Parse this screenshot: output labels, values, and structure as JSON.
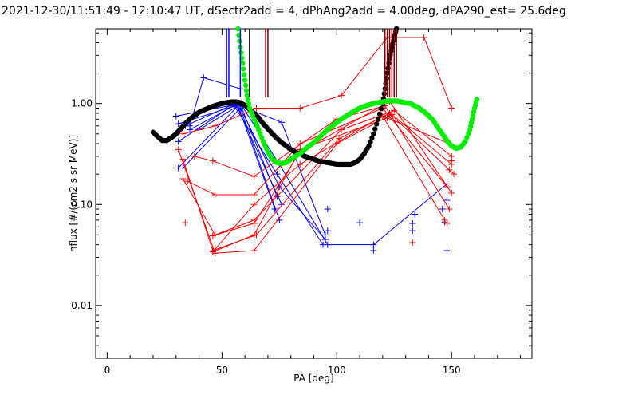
{
  "chart_data": {
    "type": "scatter",
    "title": "2021-12-30/11:51:49 - 12:10:47 UT, dSectr2add = 4, dPhAng2add = 4.00deg, dPA290_est=  25.6deg",
    "xlabel": "PA [deg]",
    "ylabel": "nflux [#/(cm2 s sr MeV)]",
    "xlim": [
      -5,
      185
    ],
    "ylim": [
      0.003,
      5.5
    ],
    "yscale": "log",
    "grid": false,
    "x_ticks": [
      {
        "value": 0,
        "label": "0"
      },
      {
        "value": 50,
        "label": "50"
      },
      {
        "value": 100,
        "label": "100"
      },
      {
        "value": 150,
        "label": "150"
      }
    ],
    "y_ticks": [
      {
        "value": 0.01,
        "label": "0.01"
      },
      {
        "value": 0.1,
        "label": "0.10"
      },
      {
        "value": 1.0,
        "label": "1.00"
      }
    ],
    "colors": {
      "blue": "#0000ff",
      "red": "#ff0000",
      "black": "#000000",
      "green": "#00ee00",
      "darkred": "#8b0000"
    },
    "series": [
      {
        "color": "blue",
        "style": "line-plus",
        "lines": [
          [
            [
              30,
              0.75
            ],
            [
              58,
              1.0
            ],
            [
              75,
              0.25
            ],
            [
              96,
              0.04
            ],
            [
              116,
              0.04
            ],
            [
              148,
              0.16
            ]
          ],
          [
            [
              36,
              0.6
            ],
            [
              42,
              1.8
            ],
            [
              58,
              1.4
            ]
          ],
          [
            [
              31,
              0.63
            ],
            [
              57,
              0.97
            ],
            [
              76,
              0.65
            ],
            [
              95,
              0.05
            ]
          ],
          [
            [
              31,
              0.42
            ],
            [
              56,
              1.0
            ],
            [
              76,
              0.1
            ]
          ],
          [
            [
              34,
              0.6
            ],
            [
              55,
              0.98
            ],
            [
              74,
              0.2
            ],
            [
              94,
              0.04
            ]
          ],
          [
            [
              31,
              0.23
            ],
            [
              57,
              0.95
            ],
            [
              73,
              0.09
            ]
          ],
          [
            [
              33,
              0.23
            ],
            [
              58,
              0.9
            ],
            [
              75,
              0.07
            ]
          ],
          [
            [
              36,
              0.55
            ],
            [
              57,
              1.0
            ],
            [
              75,
              0.15
            ],
            [
              95,
              0.045
            ]
          ],
          [
            [
              40,
              0.55
            ],
            [
              58,
              0.98
            ],
            [
              74,
              0.12
            ]
          ]
        ],
        "points": [
          [
            96,
            0.09
          ],
          [
            96,
            0.055
          ],
          [
            110,
            0.066
          ],
          [
            116,
            0.035
          ],
          [
            133,
            0.065
          ],
          [
            133,
            0.055
          ],
          [
            134,
            0.08
          ],
          [
            146,
            0.09
          ],
          [
            147,
            0.067
          ],
          [
            148,
            0.035
          ],
          [
            148,
            0.11
          ]
        ]
      },
      {
        "color": "red",
        "style": "line-plus",
        "lines": [
          [
            [
              31,
              0.35
            ],
            [
              47,
              0.033
            ],
            [
              64,
              0.035
            ],
            [
              100,
              0.4
            ],
            [
              124,
              0.78
            ],
            [
              150,
              0.25
            ]
          ],
          [
            [
              33,
              0.28
            ],
            [
              46,
              0.035
            ],
            [
              65,
              0.05
            ],
            [
              101,
              0.45
            ],
            [
              123,
              0.8
            ],
            [
              151,
              0.2
            ]
          ],
          [
            [
              33,
              0.18
            ],
            [
              47,
              0.05
            ],
            [
              64,
              0.07
            ],
            [
              102,
              0.55
            ],
            [
              125,
              0.85
            ],
            [
              150,
              0.3
            ]
          ],
          [
            [
              35,
              0.17
            ],
            [
              47,
              0.125
            ],
            [
              64,
              0.125
            ],
            [
              84,
              0.4
            ],
            [
              120,
              0.9
            ],
            [
              148,
              0.15
            ]
          ],
          [
            [
              38,
              0.3
            ],
            [
              46,
              0.27
            ],
            [
              64,
              0.19
            ],
            [
              100,
              0.7
            ],
            [
              121,
              0.95
            ],
            [
              149,
              0.09
            ]
          ],
          [
            [
              33,
              0.5
            ],
            [
              47,
              0.6
            ],
            [
              65,
              0.9
            ],
            [
              84,
              0.9
            ],
            [
              102,
              1.2
            ],
            [
              122,
              4.5
            ],
            [
              138,
              4.5
            ],
            [
              150,
              0.9
            ]
          ],
          [
            [
              46,
              0.034
            ],
            [
              64,
              0.1
            ],
            [
              84,
              0.25
            ],
            [
              120,
              0.75
            ],
            [
              147,
              0.07
            ]
          ],
          [
            [
              46,
              0.034
            ],
            [
              64,
              0.05
            ],
            [
              84,
              0.35
            ],
            [
              122,
              0.72
            ],
            [
              149,
              0.4
            ]
          ],
          [
            [
              46,
              0.049
            ],
            [
              64,
              0.065
            ],
            [
              84,
              0.33
            ],
            [
              123,
              1.05
            ],
            [
              150,
              0.13
            ]
          ]
        ],
        "points": [
          [
            34,
            0.066
          ],
          [
            133,
            0.042
          ],
          [
            148,
            0.065
          ],
          [
            149,
            0.22
          ],
          [
            150,
            0.27
          ]
        ]
      },
      {
        "color": "black",
        "style": "thick-dotted",
        "points": [
          [
            20,
            0.52
          ],
          [
            22,
            0.47
          ],
          [
            24,
            0.43
          ],
          [
            26,
            0.43
          ],
          [
            28,
            0.46
          ],
          [
            30,
            0.5
          ],
          [
            32,
            0.56
          ],
          [
            34,
            0.63
          ],
          [
            36,
            0.7
          ],
          [
            38,
            0.76
          ],
          [
            40,
            0.82
          ],
          [
            42,
            0.86
          ],
          [
            44,
            0.9
          ],
          [
            46,
            0.94
          ],
          [
            48,
            0.97
          ],
          [
            50,
            1.0
          ],
          [
            52,
            1.02
          ],
          [
            54,
            1.04
          ],
          [
            56,
            1.04
          ],
          [
            58,
            1.02
          ],
          [
            60,
            0.96
          ],
          [
            62,
            0.88
          ],
          [
            64,
            0.8
          ],
          [
            66,
            0.72
          ],
          [
            68,
            0.63
          ],
          [
            70,
            0.56
          ],
          [
            72,
            0.5
          ],
          [
            74,
            0.45
          ],
          [
            76,
            0.41
          ],
          [
            78,
            0.38
          ],
          [
            80,
            0.35
          ],
          [
            82,
            0.33
          ],
          [
            84,
            0.32
          ],
          [
            86,
            0.3
          ],
          [
            88,
            0.29
          ],
          [
            90,
            0.28
          ],
          [
            92,
            0.27
          ],
          [
            94,
            0.265
          ],
          [
            96,
            0.26
          ],
          [
            98,
            0.255
          ],
          [
            100,
            0.25
          ],
          [
            102,
            0.25
          ],
          [
            104,
            0.25
          ],
          [
            106,
            0.25
          ],
          [
            108,
            0.26
          ],
          [
            110,
            0.28
          ],
          [
            112,
            0.32
          ],
          [
            114,
            0.38
          ],
          [
            116,
            0.5
          ],
          [
            118,
            0.7
          ],
          [
            120,
            1.0
          ],
          [
            121,
            1.4
          ],
          [
            122,
            2.0
          ],
          [
            123,
            2.8
          ],
          [
            124,
            3.6
          ],
          [
            125,
            4.5
          ],
          [
            126,
            5.5
          ]
        ]
      },
      {
        "color": "green",
        "style": "thick-dotted",
        "points": [
          [
            57,
            5.5
          ],
          [
            58,
            3.6
          ],
          [
            59,
            2.5
          ],
          [
            60,
            1.7
          ],
          [
            61,
            1.2
          ],
          [
            62,
            0.9
          ],
          [
            64,
            0.7
          ],
          [
            66,
            0.55
          ],
          [
            68,
            0.42
          ],
          [
            70,
            0.33
          ],
          [
            72,
            0.28
          ],
          [
            74,
            0.26
          ],
          [
            76,
            0.255
          ],
          [
            78,
            0.26
          ],
          [
            80,
            0.28
          ],
          [
            82,
            0.3
          ],
          [
            84,
            0.32
          ],
          [
            86,
            0.35
          ],
          [
            88,
            0.38
          ],
          [
            90,
            0.41
          ],
          [
            92,
            0.45
          ],
          [
            94,
            0.5
          ],
          [
            96,
            0.55
          ],
          [
            98,
            0.6
          ],
          [
            100,
            0.65
          ],
          [
            102,
            0.7
          ],
          [
            104,
            0.75
          ],
          [
            106,
            0.8
          ],
          [
            108,
            0.85
          ],
          [
            110,
            0.9
          ],
          [
            112,
            0.94
          ],
          [
            114,
            0.97
          ],
          [
            116,
            1.0
          ],
          [
            118,
            1.02
          ],
          [
            120,
            1.04
          ],
          [
            122,
            1.06
          ],
          [
            124,
            1.06
          ],
          [
            126,
            1.06
          ],
          [
            128,
            1.04
          ],
          [
            130,
            1.02
          ],
          [
            132,
            1.0
          ],
          [
            134,
            0.95
          ],
          [
            136,
            0.9
          ],
          [
            138,
            0.83
          ],
          [
            140,
            0.76
          ],
          [
            142,
            0.68
          ],
          [
            144,
            0.58
          ],
          [
            146,
            0.5
          ],
          [
            148,
            0.43
          ],
          [
            150,
            0.38
          ],
          [
            152,
            0.36
          ],
          [
            154,
            0.37
          ],
          [
            156,
            0.42
          ],
          [
            158,
            0.55
          ],
          [
            159,
            0.7
          ],
          [
            160,
            0.9
          ],
          [
            161,
            1.1
          ]
        ]
      },
      {
        "color": "blue",
        "style": "vline",
        "lines": [
          [
            [
              52,
              5.5
            ],
            [
              52,
              1.15
            ]
          ],
          [
            [
              53,
              5.5
            ],
            [
              53,
              1.15
            ]
          ],
          [
            [
              58,
              5.5
            ],
            [
              58,
              1.15
            ]
          ]
        ]
      },
      {
        "color": "black",
        "style": "vline",
        "lines": [
          [
            [
              62,
              5.5
            ],
            [
              62,
              1.15
            ]
          ]
        ]
      },
      {
        "color": "darkred",
        "style": "vline",
        "lines": [
          [
            [
              69,
              5.5
            ],
            [
              69,
              1.15
            ]
          ],
          [
            [
              70,
              5.5
            ],
            [
              70,
              1.15
            ]
          ],
          [
            [
              121,
              5.5
            ],
            [
              121,
              1.15
            ]
          ],
          [
            [
              122,
              5.5
            ],
            [
              122,
              1.15
            ]
          ],
          [
            [
              123,
              5.5
            ],
            [
              123,
              1.15
            ]
          ],
          [
            [
              124,
              5.5
            ],
            [
              124,
              1.15
            ]
          ],
          [
            [
              125,
              5.5
            ],
            [
              125,
              1.15
            ]
          ],
          [
            [
              126,
              5.5
            ],
            [
              126,
              1.15
            ]
          ]
        ]
      }
    ]
  }
}
